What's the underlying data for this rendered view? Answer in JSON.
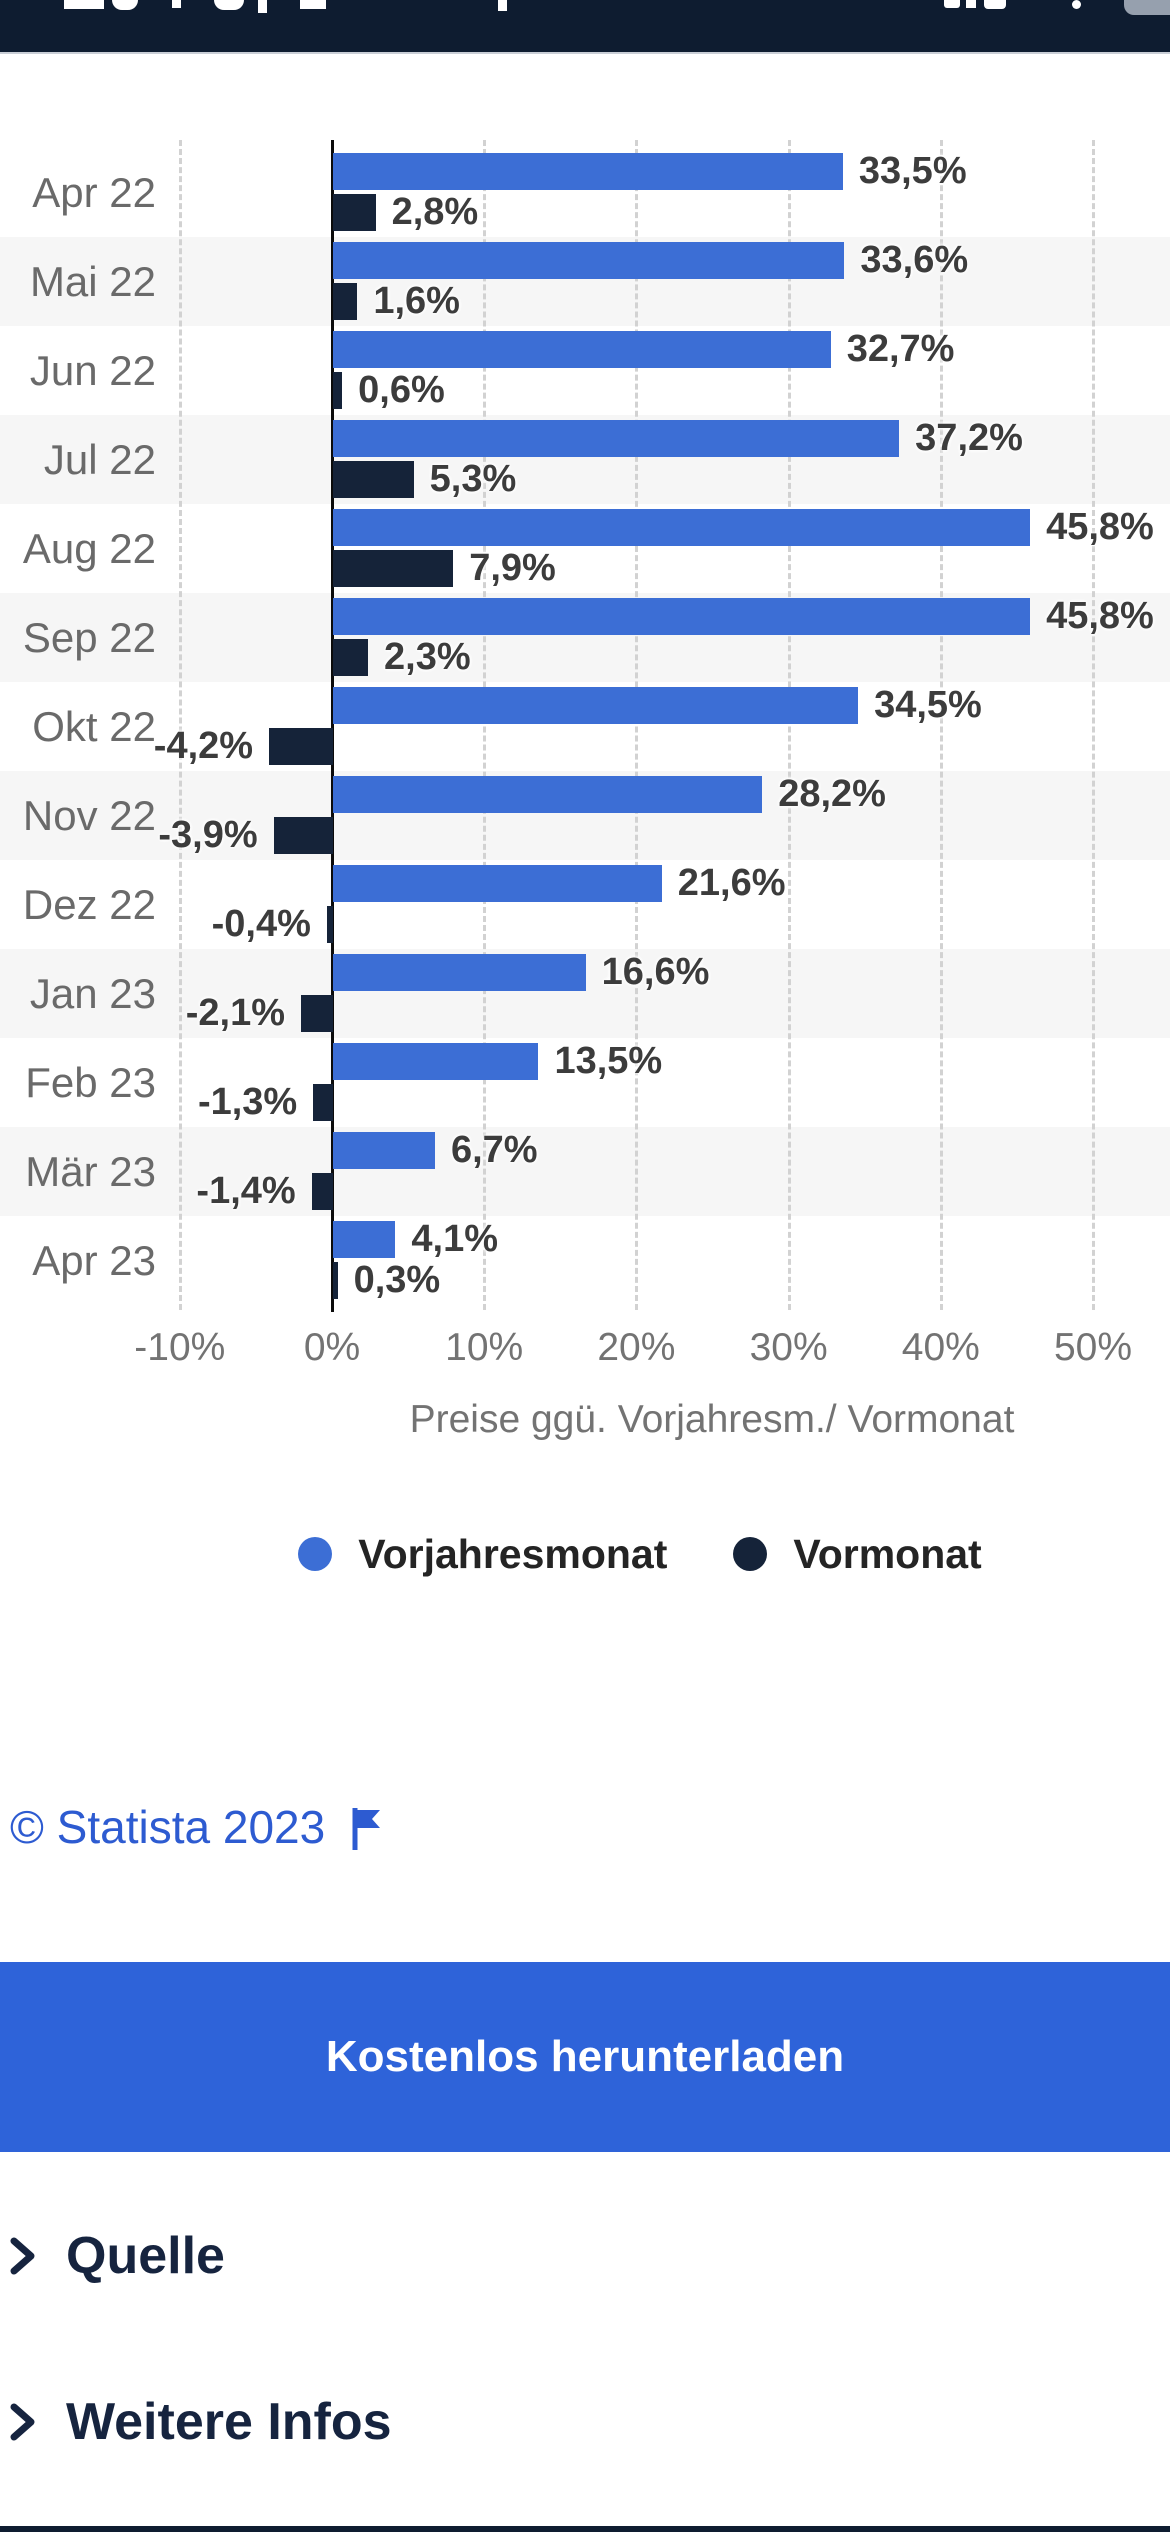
{
  "chart_data": {
    "type": "bar",
    "orientation": "horizontal",
    "categories": [
      "Apr 22",
      "Mai 22",
      "Jun 22",
      "Jul 22",
      "Aug 22",
      "Sep 22",
      "Okt 22",
      "Nov 22",
      "Dez 22",
      "Jan 23",
      "Feb 23",
      "Mär 23",
      "Apr 23"
    ],
    "series": [
      {
        "name": "Vorjahresmonat",
        "color": "#3c6ed5",
        "values": [
          33.5,
          33.6,
          32.7,
          37.2,
          45.8,
          45.8,
          34.5,
          28.2,
          21.6,
          16.6,
          13.5,
          6.7,
          4.1
        ],
        "labels": [
          "33,5%",
          "33,6%",
          "32,7%",
          "37,2%",
          "45,8%",
          "45,8%",
          "34,5%",
          "28,2%",
          "21,6%",
          "16,6%",
          "13,5%",
          "6,7%",
          "4,1%"
        ]
      },
      {
        "name": "Vormonat",
        "color": "#152339",
        "values": [
          2.8,
          1.6,
          0.6,
          5.3,
          7.9,
          2.3,
          -4.2,
          -3.9,
          -0.4,
          -2.1,
          -1.3,
          -1.4,
          0.3
        ],
        "labels": [
          "2,8%",
          "1,6%",
          "0,6%",
          "5,3%",
          "7,9%",
          "2,3%",
          "-4,2%",
          "-3,9%",
          "-0,4%",
          "-2,1%",
          "-1,3%",
          "-1,4%",
          "0,3%"
        ]
      }
    ],
    "xlabel": "Preise ggü. Vorjahresm./ Vormonat",
    "axis": {
      "tick_values": [
        -10,
        0,
        10,
        20,
        30,
        40,
        50
      ],
      "tick_labels": [
        "-10%",
        "0%",
        "10%",
        "20%",
        "30%",
        "40%",
        "50%"
      ],
      "xlim": [
        -10,
        55
      ],
      "grid": "dashed-vertical",
      "zero_line": true
    },
    "legend_position": "bottom",
    "row_striping": true
  },
  "footer": {
    "copyright": "© Statista 2023",
    "download_button_label": "Kostenlos herunterladen",
    "sections": [
      {
        "label": "Quelle"
      },
      {
        "label": "Weitere Infos"
      }
    ]
  },
  "colors": {
    "header_bg": "#0e1c30",
    "button_bg": "#2e63d9",
    "link_blue": "#2d5bd1",
    "series_blue": "#3c6ed5",
    "series_navy": "#152339",
    "stripe": "#f6f6f6",
    "grid": "#d2d2d2"
  }
}
